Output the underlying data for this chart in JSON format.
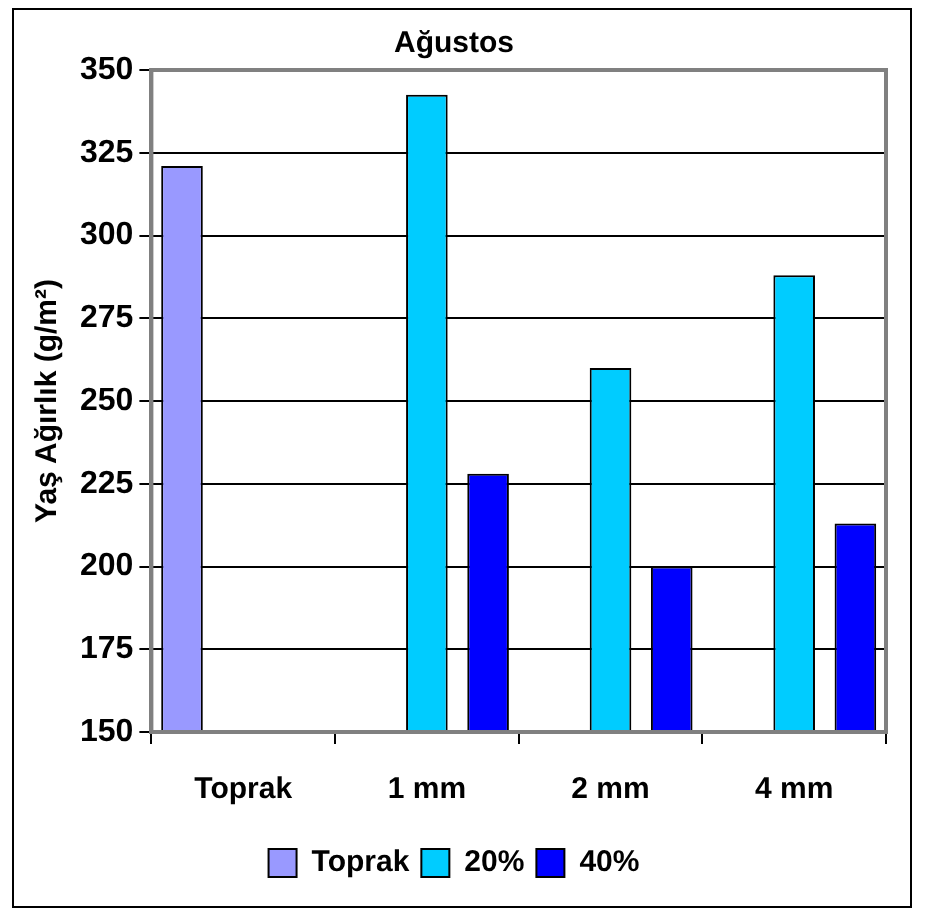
{
  "chart_data": {
    "type": "bar",
    "title": "Ağustos",
    "ylabel": "Yaş Ağırlık (g/m²)",
    "categories": [
      "Toprak",
      "1 mm",
      "2 mm",
      "4 mm"
    ],
    "series": [
      {
        "name": "Toprak",
        "color": "#9999ff",
        "values": [
          321,
          null,
          null,
          null
        ]
      },
      {
        "name": "20%",
        "color": "#00ccff",
        "values": [
          null,
          342.5,
          260,
          288
        ]
      },
      {
        "name": "40%",
        "color": "#0000ff",
        "values": [
          null,
          228,
          200,
          213
        ]
      }
    ],
    "ylim": [
      150,
      350
    ],
    "yticks": [
      150,
      175,
      200,
      225,
      250,
      275,
      300,
      325,
      350
    ],
    "grid": "y",
    "legend": "bottom"
  }
}
